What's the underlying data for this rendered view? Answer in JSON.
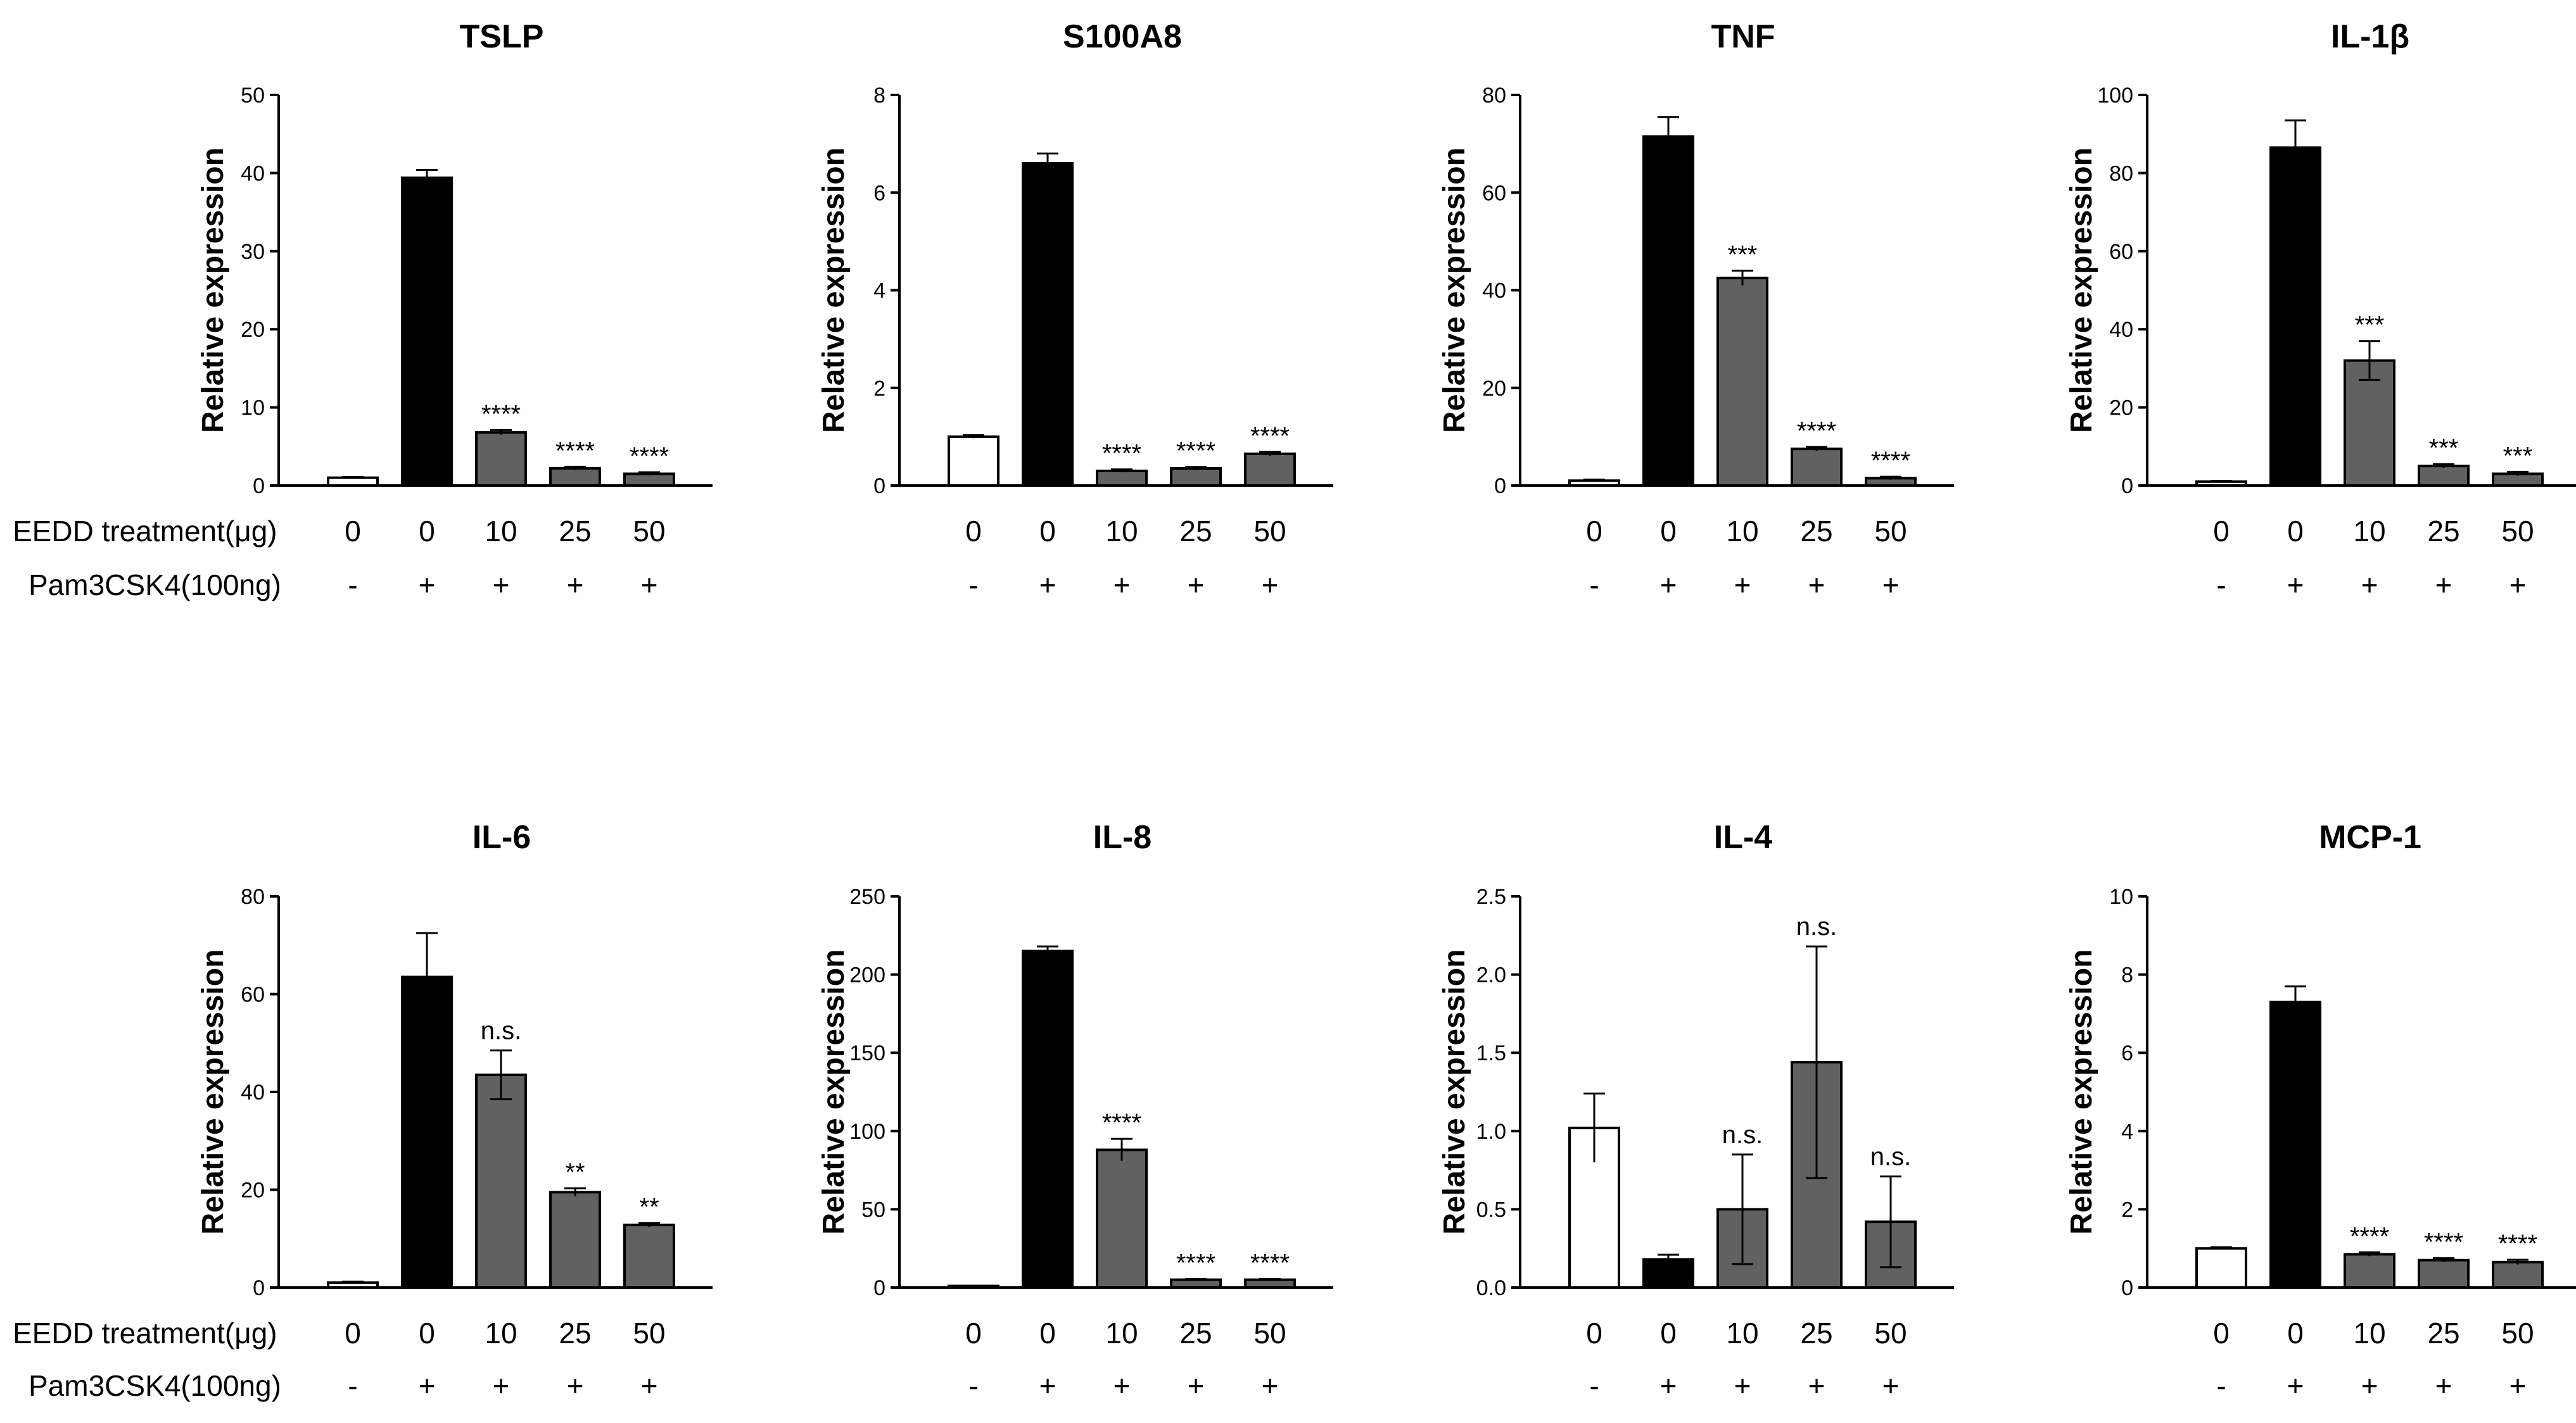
{
  "figure": {
    "row_labels": {
      "treatment": "EEDD treatment(μg)",
      "pam": "Pam3CSK4(100ng)"
    },
    "colors": {
      "control": "#ffffff",
      "positive": "#000000",
      "treated": "#616161",
      "outline": "#000000"
    }
  },
  "chart_data": [
    {
      "type": "bar",
      "title": "TSLP",
      "ylabel": "Relative expression",
      "ylim": [
        0,
        50
      ],
      "yticks": [
        "0",
        "10",
        "20",
        "30",
        "40",
        "50"
      ],
      "categories": [
        "0",
        "0",
        "10",
        "25",
        "50"
      ],
      "pam": [
        "-",
        "+",
        "+",
        "+",
        "+"
      ],
      "values": [
        1.0,
        39.4,
        6.8,
        2.2,
        1.5
      ],
      "errors": [
        0.1,
        1.0,
        0.3,
        0.2,
        0.2
      ],
      "significance": [
        "",
        "",
        "****",
        "****",
        "****"
      ]
    },
    {
      "type": "bar",
      "title": "S100A8",
      "ylabel": "Relative expression",
      "ylim": [
        0,
        8
      ],
      "yticks": [
        "0",
        "2",
        "4",
        "6",
        "8"
      ],
      "categories": [
        "0",
        "0",
        "10",
        "25",
        "50"
      ],
      "pam": [
        "-",
        "+",
        "+",
        "+",
        "+"
      ],
      "values": [
        1.0,
        6.6,
        0.3,
        0.35,
        0.65
      ],
      "errors": [
        0.03,
        0.2,
        0.03,
        0.03,
        0.04
      ],
      "significance": [
        "",
        "",
        "****",
        "****",
        "****"
      ]
    },
    {
      "type": "bar",
      "title": "TNF",
      "ylabel": "Relative expression",
      "ylim": [
        0,
        80
      ],
      "yticks": [
        "0",
        "20",
        "40",
        "60",
        "80"
      ],
      "categories": [
        "0",
        "0",
        "10",
        "25",
        "50"
      ],
      "pam": [
        "-",
        "+",
        "+",
        "+",
        "+"
      ],
      "values": [
        1.0,
        71.5,
        42.5,
        7.5,
        1.5
      ],
      "errors": [
        0.2,
        4.0,
        1.5,
        0.4,
        0.3
      ],
      "significance": [
        "",
        "",
        "***",
        "****",
        "****"
      ]
    },
    {
      "type": "bar",
      "title": "IL-1β",
      "ylabel": "Relative expression",
      "ylim": [
        0,
        100
      ],
      "yticks": [
        "0",
        "20",
        "40",
        "60",
        "80",
        "100"
      ],
      "categories": [
        "0",
        "0",
        "10",
        "25",
        "50"
      ],
      "pam": [
        "-",
        "+",
        "+",
        "+",
        "+"
      ],
      "values": [
        1.0,
        86.5,
        32.0,
        5.0,
        3.0
      ],
      "errors": [
        0.2,
        7.0,
        5.0,
        0.5,
        0.5
      ],
      "significance": [
        "",
        "",
        "***",
        "***",
        "***"
      ]
    },
    {
      "type": "bar",
      "title": "IL-6",
      "ylabel": "Relative expression",
      "ylim": [
        0,
        80
      ],
      "yticks": [
        "0",
        "20",
        "40",
        "60",
        "80"
      ],
      "categories": [
        "0",
        "0",
        "10",
        "25",
        "50"
      ],
      "pam": [
        "-",
        "+",
        "+",
        "+",
        "+"
      ],
      "values": [
        1.0,
        63.5,
        43.5,
        19.5,
        12.8
      ],
      "errors": [
        0.2,
        9.0,
        5.0,
        0.8,
        0.4
      ],
      "significance": [
        "",
        "",
        "n.s.",
        "**",
        "**"
      ]
    },
    {
      "type": "bar",
      "title": "IL-8",
      "ylabel": "Relative expression",
      "ylim": [
        0,
        250
      ],
      "yticks": [
        "0",
        "50",
        "100",
        "150",
        "200",
        "250"
      ],
      "categories": [
        "0",
        "0",
        "10",
        "25",
        "50"
      ],
      "pam": [
        "-",
        "+",
        "+",
        "+",
        "+"
      ],
      "values": [
        1.0,
        215.0,
        88.0,
        5.0,
        5.0
      ],
      "errors": [
        0.2,
        3.0,
        7.0,
        0.5,
        0.5
      ],
      "significance": [
        "",
        "",
        "****",
        "****",
        "****"
      ]
    },
    {
      "type": "bar",
      "title": "IL-4",
      "ylabel": "Relative expression",
      "ylim": [
        0,
        2.5
      ],
      "yticks": [
        "0.0",
        "0.5",
        "1.0",
        "1.5",
        "2.0",
        "2.5"
      ],
      "categories": [
        "0",
        "0",
        "10",
        "25",
        "50"
      ],
      "pam": [
        "-",
        "+",
        "+",
        "+",
        "+"
      ],
      "values": [
        1.02,
        0.18,
        0.5,
        1.44,
        0.42
      ],
      "errors": [
        0.22,
        0.03,
        0.35,
        0.74,
        0.29
      ],
      "significance": [
        "",
        "",
        "n.s.",
        "n.s.",
        "n.s."
      ]
    },
    {
      "type": "bar",
      "title": "MCP-1",
      "ylabel": "Relative expression",
      "ylim": [
        0,
        10
      ],
      "yticks": [
        "0",
        "2",
        "4",
        "6",
        "8",
        "10"
      ],
      "categories": [
        "0",
        "0",
        "10",
        "25",
        "50"
      ],
      "pam": [
        "-",
        "+",
        "+",
        "+",
        "+"
      ],
      "values": [
        1.0,
        7.3,
        0.85,
        0.7,
        0.65
      ],
      "errors": [
        0.03,
        0.4,
        0.05,
        0.05,
        0.06
      ],
      "significance": [
        "",
        "",
        "****",
        "****",
        "****"
      ]
    }
  ]
}
